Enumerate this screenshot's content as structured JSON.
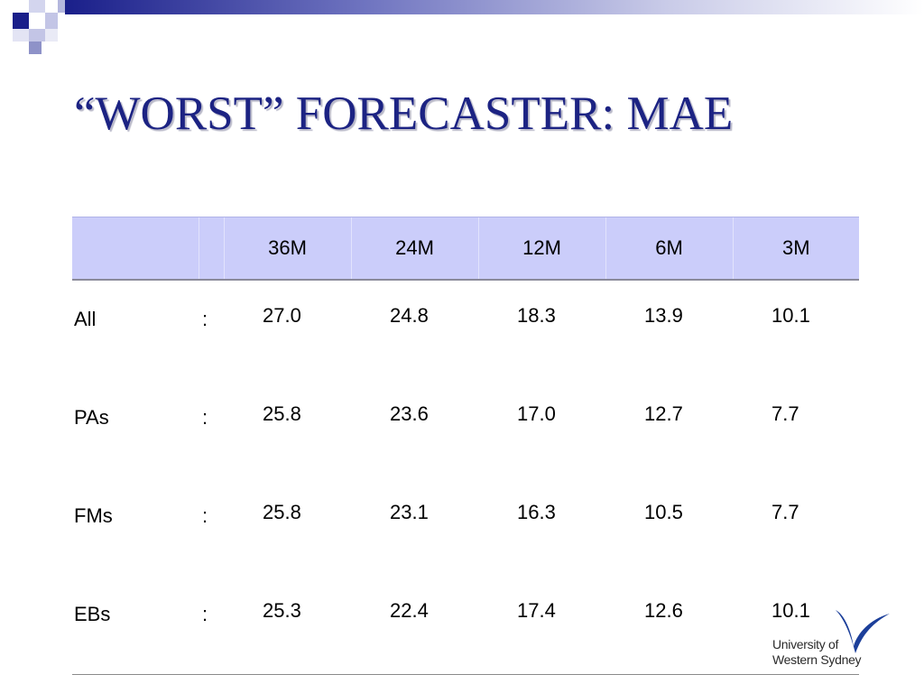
{
  "slide": {
    "title": "“WORST” FORECASTER: MAE"
  },
  "table": {
    "headers": [
      "",
      "",
      "36M",
      "24M",
      "12M",
      "6M",
      "3M"
    ],
    "rows": [
      {
        "label": "All",
        "sep": ":",
        "values": [
          "27.0",
          "24.8",
          "18.3",
          "13.9",
          "10.1"
        ]
      },
      {
        "label": "PAs",
        "sep": ":",
        "values": [
          "25.8",
          "23.6",
          "17.0",
          "12.7",
          "7.7"
        ]
      },
      {
        "label": "FMs",
        "sep": ":",
        "values": [
          "25.8",
          "23.1",
          "16.3",
          "10.5",
          "7.7"
        ]
      },
      {
        "label": "EBs",
        "sep": ":",
        "values": [
          "25.3",
          "22.4",
          "17.4",
          "12.6",
          "10.1"
        ]
      }
    ]
  },
  "logo": {
    "line1": "University of",
    "line2": "Western Sydney",
    "icon": "swoosh-logo-icon"
  },
  "colors": {
    "title": "#1c2383",
    "header_bg": "#cbcdfa",
    "decoration": "#1a1f8a"
  }
}
